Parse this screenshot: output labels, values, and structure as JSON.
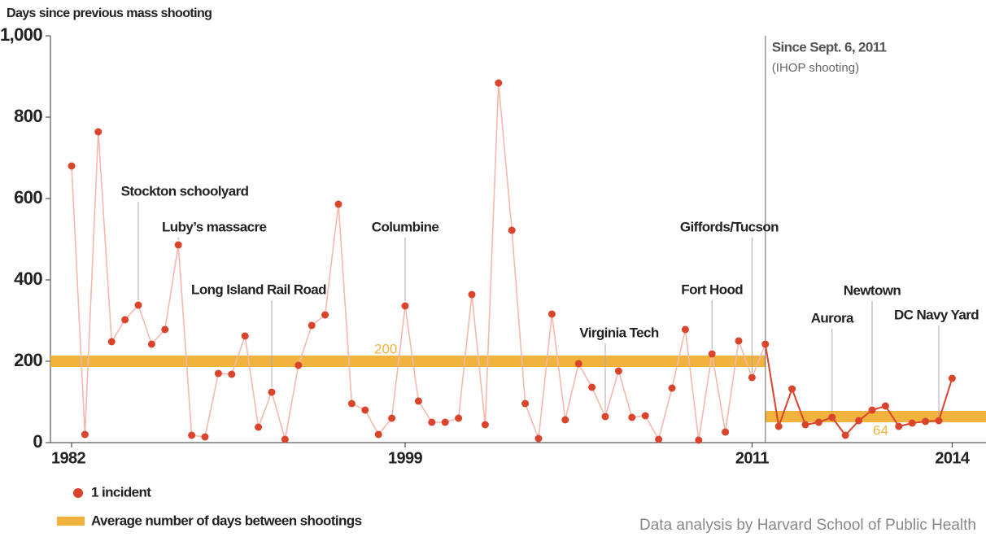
{
  "chart_data": {
    "type": "line",
    "y_axis_title": "Days since previous mass shooting",
    "categories": [
      "1982",
      null,
      null,
      null,
      null,
      null,
      null,
      null,
      null,
      null,
      null,
      null,
      null,
      null,
      null,
      null,
      null,
      null,
      null,
      null,
      null,
      null,
      null,
      null,
      null,
      "1999",
      null,
      null,
      null,
      null,
      null,
      null,
      null,
      null,
      null,
      null,
      null,
      null,
      null,
      null,
      null,
      null,
      null,
      null,
      null,
      null,
      null,
      null,
      null,
      null,
      null,
      "2011",
      null,
      null,
      null,
      null,
      null,
      null,
      null,
      null,
      null,
      null,
      null,
      null,
      null,
      null,
      "2014"
    ],
    "series": [
      {
        "name": "1 incident",
        "color": "#d9442b",
        "line_color": "#f4b8ad",
        "values": [
          680,
          20,
          764,
          248,
          302,
          338,
          242,
          278,
          486,
          18,
          14,
          170,
          168,
          262,
          38,
          124,
          8,
          190,
          288,
          314,
          586,
          96,
          80,
          20,
          60,
          336,
          102,
          50,
          50,
          60,
          364,
          44,
          884,
          522,
          96,
          10,
          316,
          56,
          194,
          136,
          64,
          176,
          62,
          66,
          8,
          134,
          278,
          6,
          218,
          26,
          250,
          160,
          242,
          40,
          132,
          44,
          50,
          62,
          18,
          54,
          80,
          90,
          40,
          48,
          52,
          54,
          158
        ]
      }
    ],
    "average": {
      "name": "Average number of days between shootings",
      "color": "#f2b23e",
      "values": [
        200,
        64
      ]
    },
    "divider": {
      "category": 52,
      "title": "Since Sept. 6, 2011",
      "subtitle": "(IHOP shooting)",
      "line_color": "#d9442b"
    },
    "annotations": [
      {
        "text": "Stockton schoolyard",
        "category": 5
      },
      {
        "text": "Luby’s massacre",
        "category": 8
      },
      {
        "text": "Long Island Rail Road",
        "category": 15
      },
      {
        "text": "Columbine",
        "category": 25
      },
      {
        "text": "Virginia Tech",
        "category": 40
      },
      {
        "text": "Fort Hood",
        "category": 48
      },
      {
        "text": "Giffords/Tucson",
        "category": 51
      },
      {
        "text": "Aurora",
        "category": 57
      },
      {
        "text": "Newtown",
        "category": 60
      },
      {
        "text": "DC Navy Yard",
        "category": 65
      }
    ],
    "ylim": [
      0,
      1000
    ],
    "yticks": [
      0,
      200,
      400,
      600,
      800,
      {
        "value": 1000,
        "label": "1,000"
      }
    ],
    "source": "Data analysis by Harvard School of Public Health"
  }
}
